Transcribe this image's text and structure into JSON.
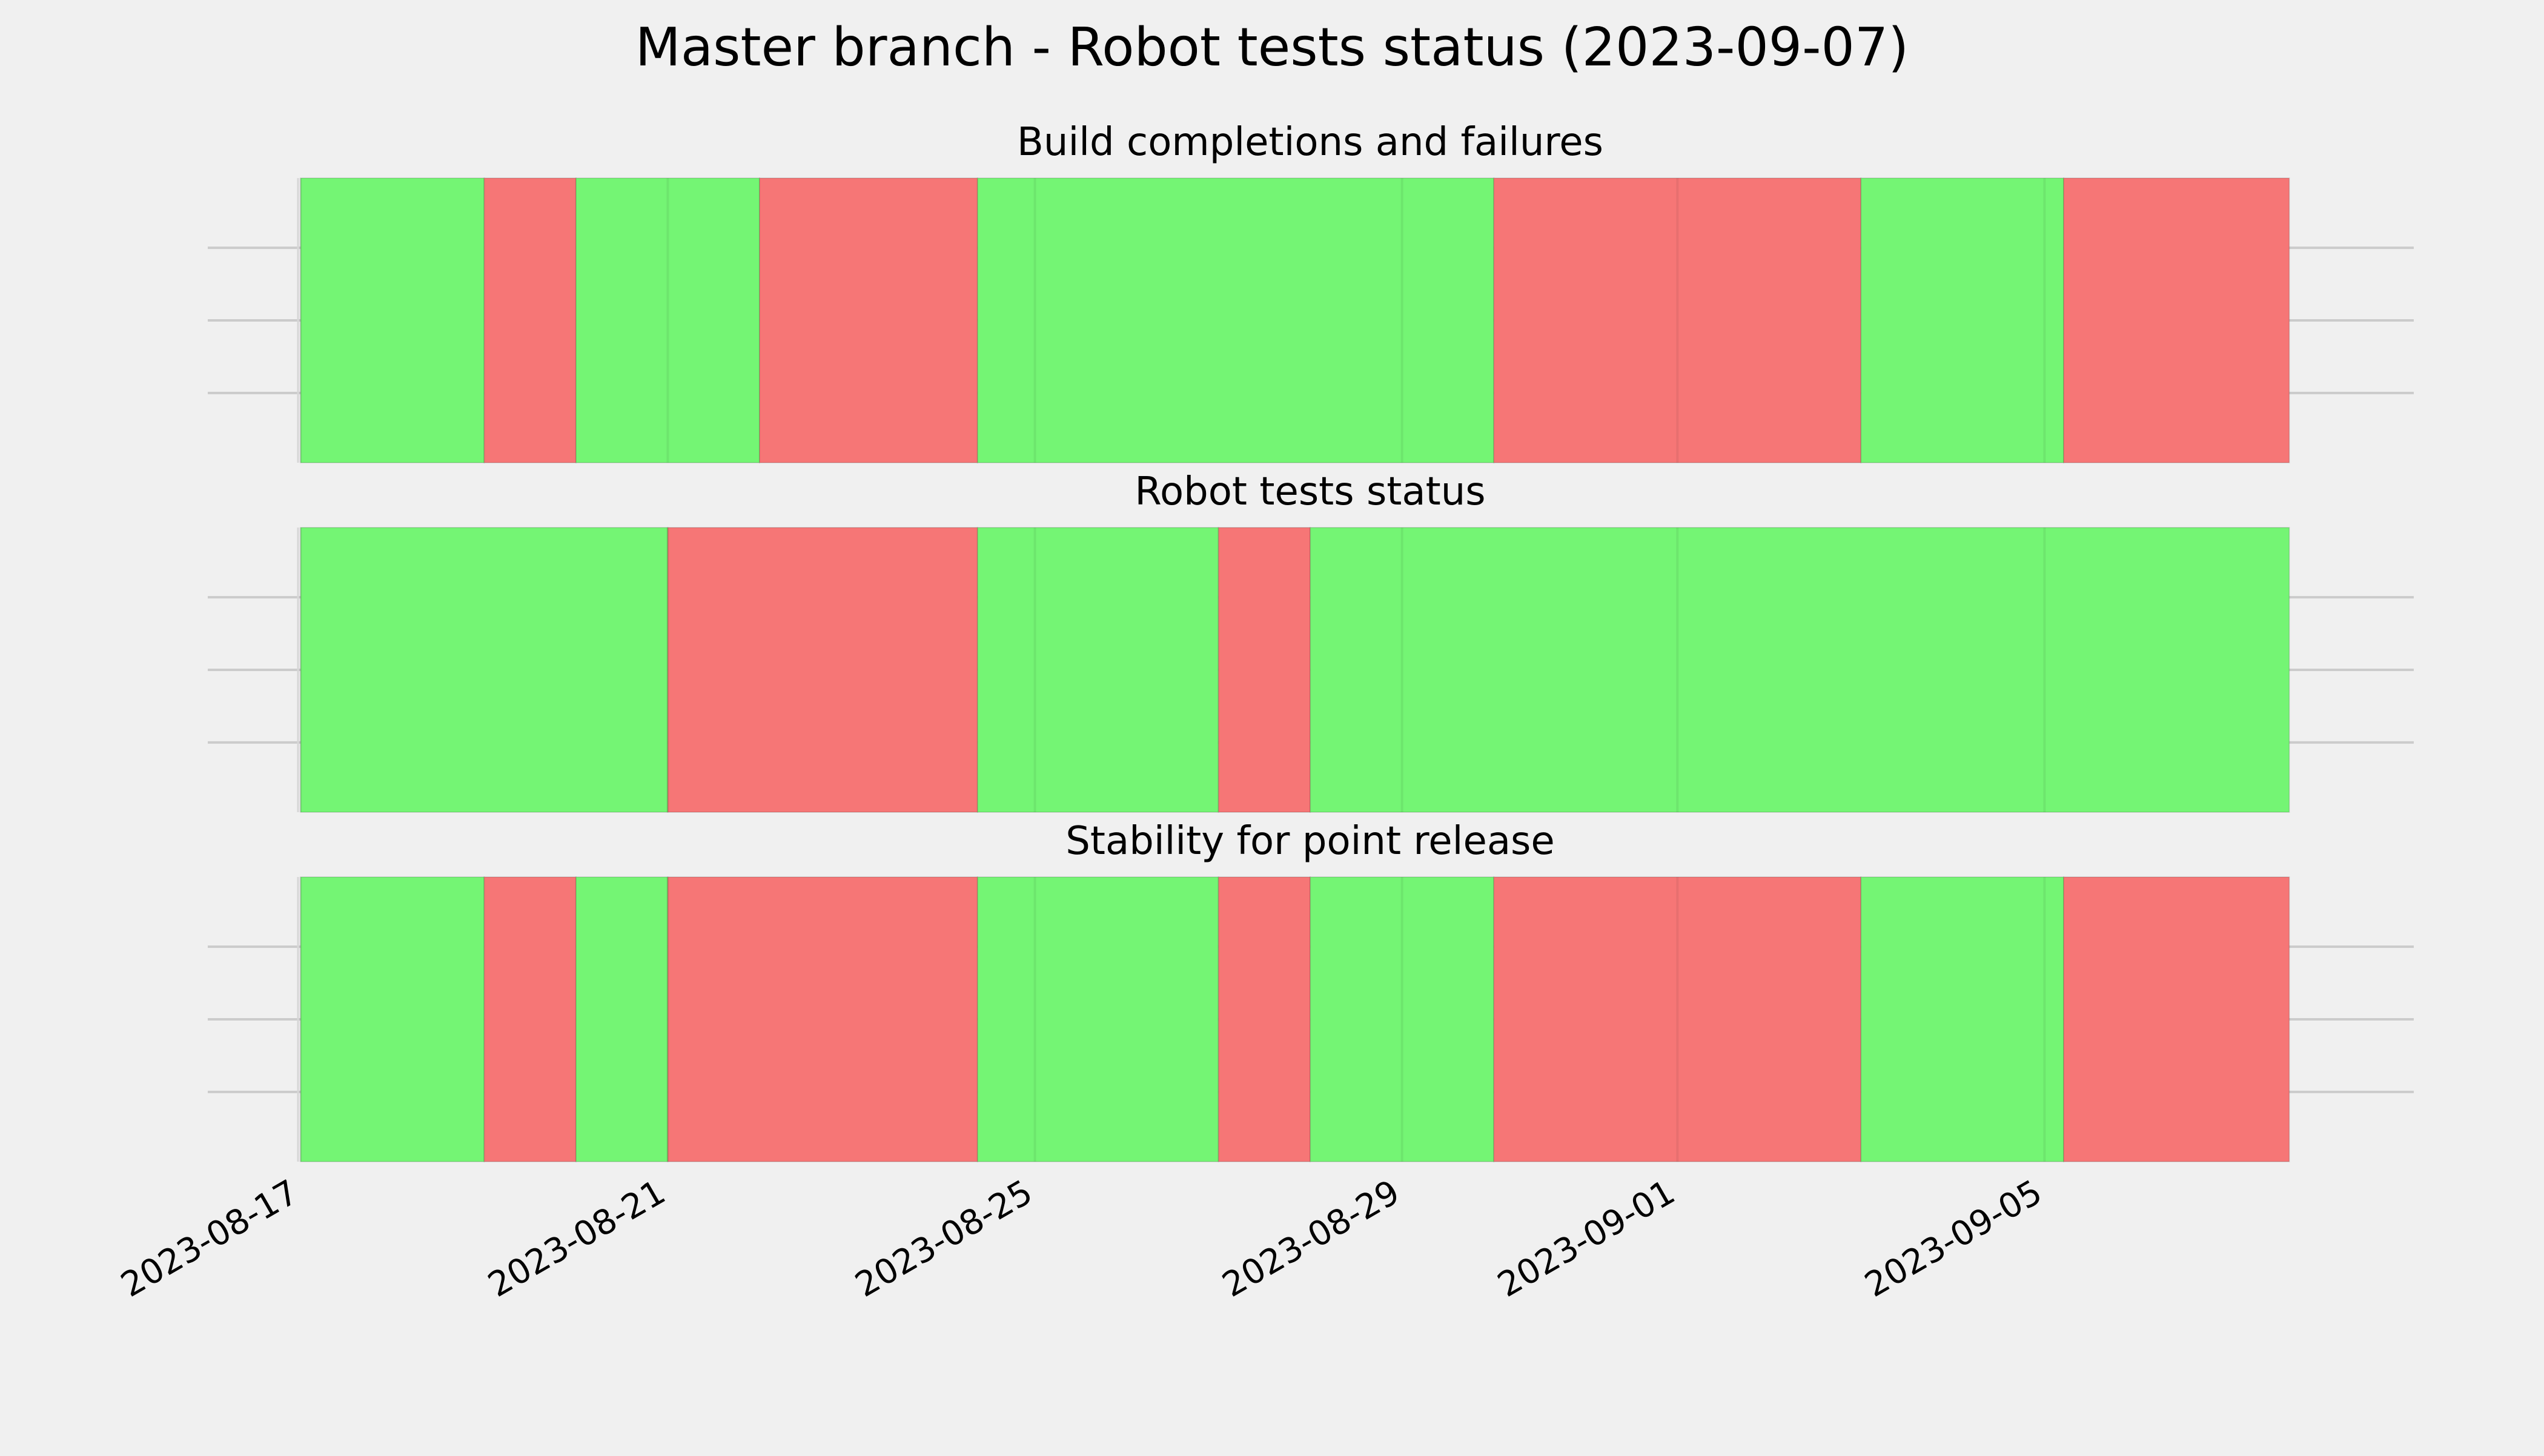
{
  "chart_data": {
    "type": "timeline",
    "title": "Master branch - Robot tests status (2023-09-07)",
    "x_axis": {
      "type": "date",
      "range": [
        "2023-08-16T23:00",
        "2023-09-08T00:00"
      ],
      "tick_labels": [
        "2023-08-17",
        "2023-08-21",
        "2023-08-25",
        "2023-08-29",
        "2023-09-01",
        "2023-09-05"
      ],
      "tick_dates": [
        "2023-08-17",
        "2023-08-21",
        "2023-08-25",
        "2023-08-29",
        "2023-09-01",
        "2023-09-05"
      ]
    },
    "grid": true,
    "status_colors": {
      "pass": "#74f574",
      "fail": "#f67676"
    },
    "panels": [
      {
        "title": "Build completions and failures",
        "segments": [
          {
            "start": "2023-08-17T00:00",
            "end": "2023-08-19T00:00",
            "status": "pass"
          },
          {
            "start": "2023-08-19T00:00",
            "end": "2023-08-20T00:00",
            "status": "fail"
          },
          {
            "start": "2023-08-20T00:00",
            "end": "2023-08-22T00:00",
            "status": "pass"
          },
          {
            "start": "2023-08-22T00:00",
            "end": "2023-08-24T09:00",
            "status": "fail"
          },
          {
            "start": "2023-08-24T09:00",
            "end": "2023-08-30T00:00",
            "status": "pass"
          },
          {
            "start": "2023-08-30T00:00",
            "end": "2023-09-03T00:00",
            "status": "fail"
          },
          {
            "start": "2023-09-03T00:00",
            "end": "2023-09-05T05:00",
            "status": "pass"
          },
          {
            "start": "2023-09-05T05:00",
            "end": "2023-09-07T16:00",
            "status": "fail"
          }
        ]
      },
      {
        "title": "Robot tests status",
        "segments": [
          {
            "start": "2023-08-17T00:00",
            "end": "2023-08-21T00:00",
            "status": "pass"
          },
          {
            "start": "2023-08-21T00:00",
            "end": "2023-08-24T09:00",
            "status": "fail"
          },
          {
            "start": "2023-08-24T09:00",
            "end": "2023-08-27T00:00",
            "status": "pass"
          },
          {
            "start": "2023-08-27T00:00",
            "end": "2023-08-28T00:00",
            "status": "fail"
          },
          {
            "start": "2023-08-28T00:00",
            "end": "2023-09-07T16:00",
            "status": "pass"
          }
        ]
      },
      {
        "title": "Stability for point release",
        "segments": [
          {
            "start": "2023-08-17T00:00",
            "end": "2023-08-19T00:00",
            "status": "pass"
          },
          {
            "start": "2023-08-19T00:00",
            "end": "2023-08-20T00:00",
            "status": "fail"
          },
          {
            "start": "2023-08-20T00:00",
            "end": "2023-08-21T00:00",
            "status": "pass"
          },
          {
            "start": "2023-08-21T00:00",
            "end": "2023-08-24T09:00",
            "status": "fail"
          },
          {
            "start": "2023-08-24T09:00",
            "end": "2023-08-27T00:00",
            "status": "pass"
          },
          {
            "start": "2023-08-27T00:00",
            "end": "2023-08-28T00:00",
            "status": "fail"
          },
          {
            "start": "2023-08-28T00:00",
            "end": "2023-08-30T00:00",
            "status": "pass"
          },
          {
            "start": "2023-08-30T00:00",
            "end": "2023-09-03T00:00",
            "status": "fail"
          },
          {
            "start": "2023-09-03T00:00",
            "end": "2023-09-05T05:00",
            "status": "pass"
          },
          {
            "start": "2023-09-05T05:00",
            "end": "2023-09-07T16:00",
            "status": "fail"
          }
        ]
      }
    ]
  }
}
